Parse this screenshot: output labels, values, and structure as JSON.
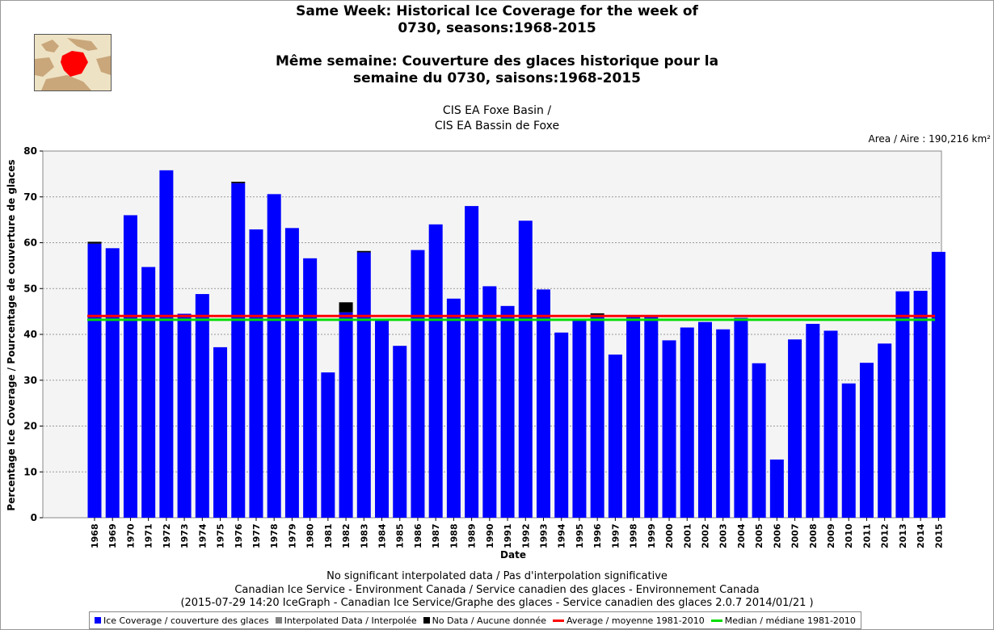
{
  "title_lines": [
    "Same Week: Historical Ice Coverage for the week of",
    "0730, seasons:1968-2015",
    "Même semaine: Couverture des glaces historique pour la",
    "semaine du 0730, saisons:1968-2015"
  ],
  "region_lines": [
    "CIS EA Foxe Basin /",
    "CIS EA Bassin de Foxe"
  ],
  "area_text": "Area / Aire : 190,216 km²",
  "footer_lines": [
    "No significant interpolated data / Pas d'interpolation significative",
    "Canadian Ice Service - Environment Canada / Service canadien des glaces - Environnement Canada",
    "(2015-07-29 14:20 IceGraph - Canadian Ice Service/Graphe des glaces - Service canadien des glaces 2.0.7 2014/01/21 )"
  ],
  "legend": [
    {
      "label": "Ice Coverage / couverture des glaces",
      "color": "#0000ff",
      "kind": "box"
    },
    {
      "label": "Interpolated Data / Interpolée",
      "color": "#808080",
      "kind": "box"
    },
    {
      "label": "No Data / Aucune donnée",
      "color": "#000000",
      "kind": "box"
    },
    {
      "label": "Average / moyenne 1981-2010",
      "color": "#ff0000",
      "kind": "line"
    },
    {
      "label": "Median / médiane 1981-2010",
      "color": "#00dd00",
      "kind": "line"
    }
  ],
  "chart_data": {
    "type": "bar",
    "xlabel": "Date",
    "ylabel": "Percentage Ice Coverage / Pourcentage de couverture de glaces",
    "ylim": [
      0,
      80
    ],
    "yticks": [
      0,
      10,
      20,
      30,
      40,
      50,
      60,
      70,
      80
    ],
    "grid": true,
    "categories": [
      "1968",
      "1969",
      "1970",
      "1971",
      "1972",
      "1973",
      "1974",
      "1975",
      "1976",
      "1977",
      "1978",
      "1979",
      "1980",
      "1981",
      "1982",
      "1983",
      "1984",
      "1985",
      "1986",
      "1987",
      "1988",
      "1989",
      "1990",
      "1991",
      "1992",
      "1993",
      "1994",
      "1995",
      "1996",
      "1997",
      "1998",
      "1999",
      "2000",
      "2001",
      "2002",
      "2003",
      "2004",
      "2005",
      "2006",
      "2007",
      "2008",
      "2009",
      "2010",
      "2011",
      "2012",
      "2013",
      "2014",
      "2015"
    ],
    "series": [
      {
        "name": "Ice Coverage / couverture des glaces",
        "color": "#0000ff",
        "values": [
          59.8,
          58.8,
          66.0,
          54.7,
          75.8,
          44.5,
          48.8,
          37.2,
          73.0,
          62.9,
          70.6,
          63.2,
          56.6,
          31.7,
          44.8,
          57.9,
          43.2,
          37.5,
          58.4,
          64.0,
          47.8,
          68.0,
          50.5,
          46.2,
          64.8,
          49.8,
          40.4,
          43.2,
          44.3,
          35.6,
          44.2,
          43.8,
          38.7,
          41.5,
          42.7,
          41.1,
          43.6,
          33.7,
          12.7,
          38.9,
          42.3,
          40.8,
          29.3,
          33.8,
          38.0,
          49.4,
          49.5,
          58.0
        ]
      },
      {
        "name": "No Data / Aucune donnée",
        "color": "#000000",
        "values": [
          0.4,
          0,
          0,
          0,
          0,
          0,
          0,
          0,
          0.3,
          0,
          0,
          0,
          0,
          0,
          2.2,
          0.3,
          0,
          0,
          0,
          0,
          0,
          0,
          0,
          0,
          0,
          0,
          0,
          0,
          0.3,
          0,
          0,
          0,
          0,
          0,
          0,
          0,
          0,
          0,
          0,
          0,
          0,
          0,
          0,
          0,
          0,
          0,
          0,
          0
        ]
      }
    ],
    "average_1981_2010": 44.0,
    "median_1981_2010": 43.2
  }
}
